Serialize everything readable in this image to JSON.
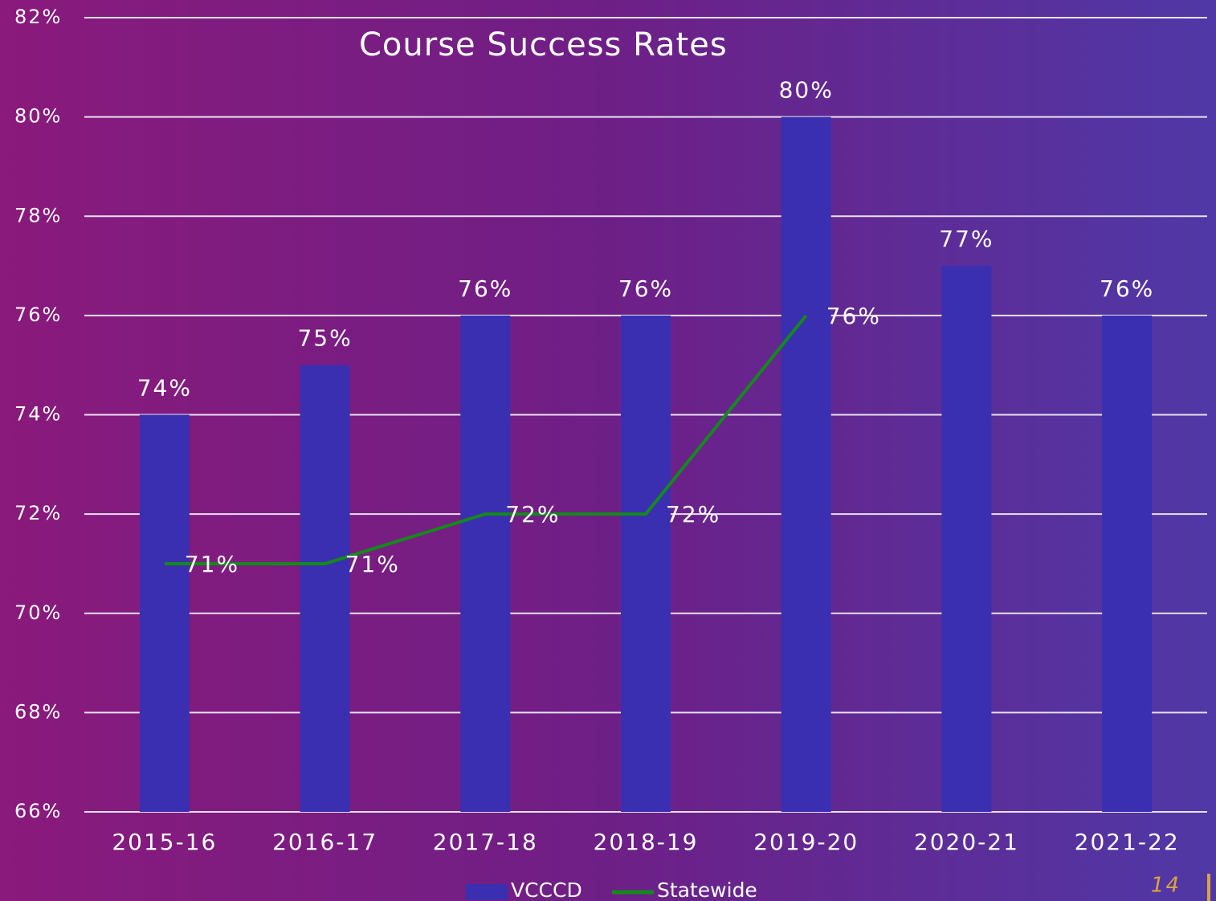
{
  "chart_data": {
    "type": "bar-line",
    "title": "Course Success Rates",
    "categories": [
      "2015-16",
      "2016-17",
      "2017-18",
      "2018-19",
      "2019-20",
      "2020-21",
      "2021-22"
    ],
    "series": [
      {
        "name": "VCCCD",
        "type": "bar",
        "color": "#3a2fb0",
        "values": [
          74,
          75,
          76,
          76,
          80,
          77,
          76
        ],
        "value_labels": [
          "74%",
          "75%",
          "76%",
          "76%",
          "80%",
          "77%",
          "76%"
        ]
      },
      {
        "name": "Statewide",
        "type": "line",
        "color": "#138a1a",
        "values": [
          71,
          71,
          72,
          72,
          76,
          null,
          null
        ],
        "value_labels": [
          "71%",
          "71%",
          "72%",
          "72%",
          "76%",
          null,
          null
        ]
      }
    ],
    "ylim": [
      66,
      82
    ],
    "yticks": [
      {
        "value": 66,
        "label": "66%"
      },
      {
        "value": 68,
        "label": "68%"
      },
      {
        "value": 70,
        "label": "70%"
      },
      {
        "value": 72,
        "label": "72%"
      },
      {
        "value": 74,
        "label": "74%"
      },
      {
        "value": 76,
        "label": "76%"
      },
      {
        "value": 78,
        "label": "78%"
      },
      {
        "value": 80,
        "label": "80%"
      },
      {
        "value": 82,
        "label": "82%"
      }
    ],
    "grid": true,
    "legend": "bottom"
  },
  "page_number": "14"
}
